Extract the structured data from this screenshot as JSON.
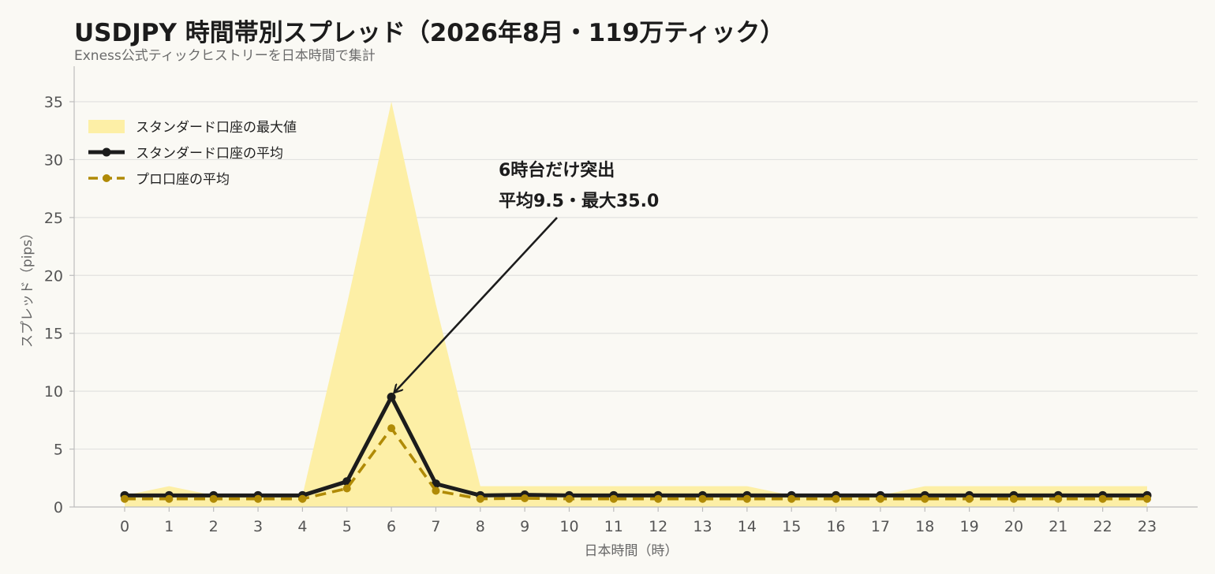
{
  "title": "USDJPY 時間帯別スプレッド（2026年8月・119万ティック）",
  "subtitle": "Exness公式ティックヒストリーを日本時間で集計",
  "colors": {
    "background": "#faf9f4",
    "max_fill": "#fdefa6",
    "standard_avg": "#1c1c1c",
    "pro_avg": "#b08a06",
    "grid": "#e2e2e0",
    "axis": "#bdbdbd"
  },
  "chart_data": {
    "type": "line",
    "xlabel": "日本時間（時）",
    "ylabel": "スプレッド（pips）",
    "x": [
      0,
      1,
      2,
      3,
      4,
      5,
      6,
      7,
      8,
      9,
      10,
      11,
      12,
      13,
      14,
      15,
      16,
      17,
      18,
      19,
      20,
      21,
      22,
      23
    ],
    "x_ticks": [
      "0",
      "1",
      "2",
      "3",
      "4",
      "5",
      "6",
      "7",
      "8",
      "9",
      "10",
      "11",
      "12",
      "13",
      "14",
      "15",
      "16",
      "17",
      "18",
      "19",
      "20",
      "21",
      "22",
      "23"
    ],
    "ylim": [
      0,
      38
    ],
    "y_ticks": [
      "0",
      "5",
      "10",
      "15",
      "20",
      "25",
      "30",
      "35"
    ],
    "grid": "horizontal",
    "legend_position": "top-left",
    "series": [
      {
        "name": "スタンダード口座の最大値",
        "style": "area",
        "color": "#fdefa6",
        "values": [
          1.0,
          1.8,
          1.0,
          1.0,
          1.0,
          17.5,
          35.0,
          17.5,
          1.8,
          1.8,
          1.8,
          1.8,
          1.8,
          1.8,
          1.8,
          1.0,
          1.0,
          1.0,
          1.8,
          1.8,
          1.8,
          1.8,
          1.8,
          1.8
        ]
      },
      {
        "name": "スタンダード口座の平均",
        "style": "line-solid",
        "color": "#1c1c1c",
        "values": [
          1.0,
          1.0,
          1.0,
          1.0,
          1.0,
          2.2,
          9.5,
          2.0,
          1.0,
          1.05,
          1.0,
          1.0,
          1.0,
          1.0,
          1.0,
          1.0,
          1.0,
          1.0,
          1.0,
          1.0,
          1.0,
          1.0,
          1.0,
          1.0
        ]
      },
      {
        "name": "プロ口座の平均",
        "style": "line-dashed",
        "color": "#b08a06",
        "values": [
          0.7,
          0.7,
          0.7,
          0.7,
          0.7,
          1.6,
          6.8,
          1.4,
          0.7,
          0.75,
          0.7,
          0.7,
          0.7,
          0.7,
          0.7,
          0.7,
          0.7,
          0.7,
          0.7,
          0.7,
          0.7,
          0.7,
          0.7,
          0.7
        ]
      }
    ],
    "annotation": {
      "line1": "6時台だけ突出",
      "line2": "平均9.5・最大35.0",
      "target_x": 6,
      "target_y": 9.5
    }
  }
}
